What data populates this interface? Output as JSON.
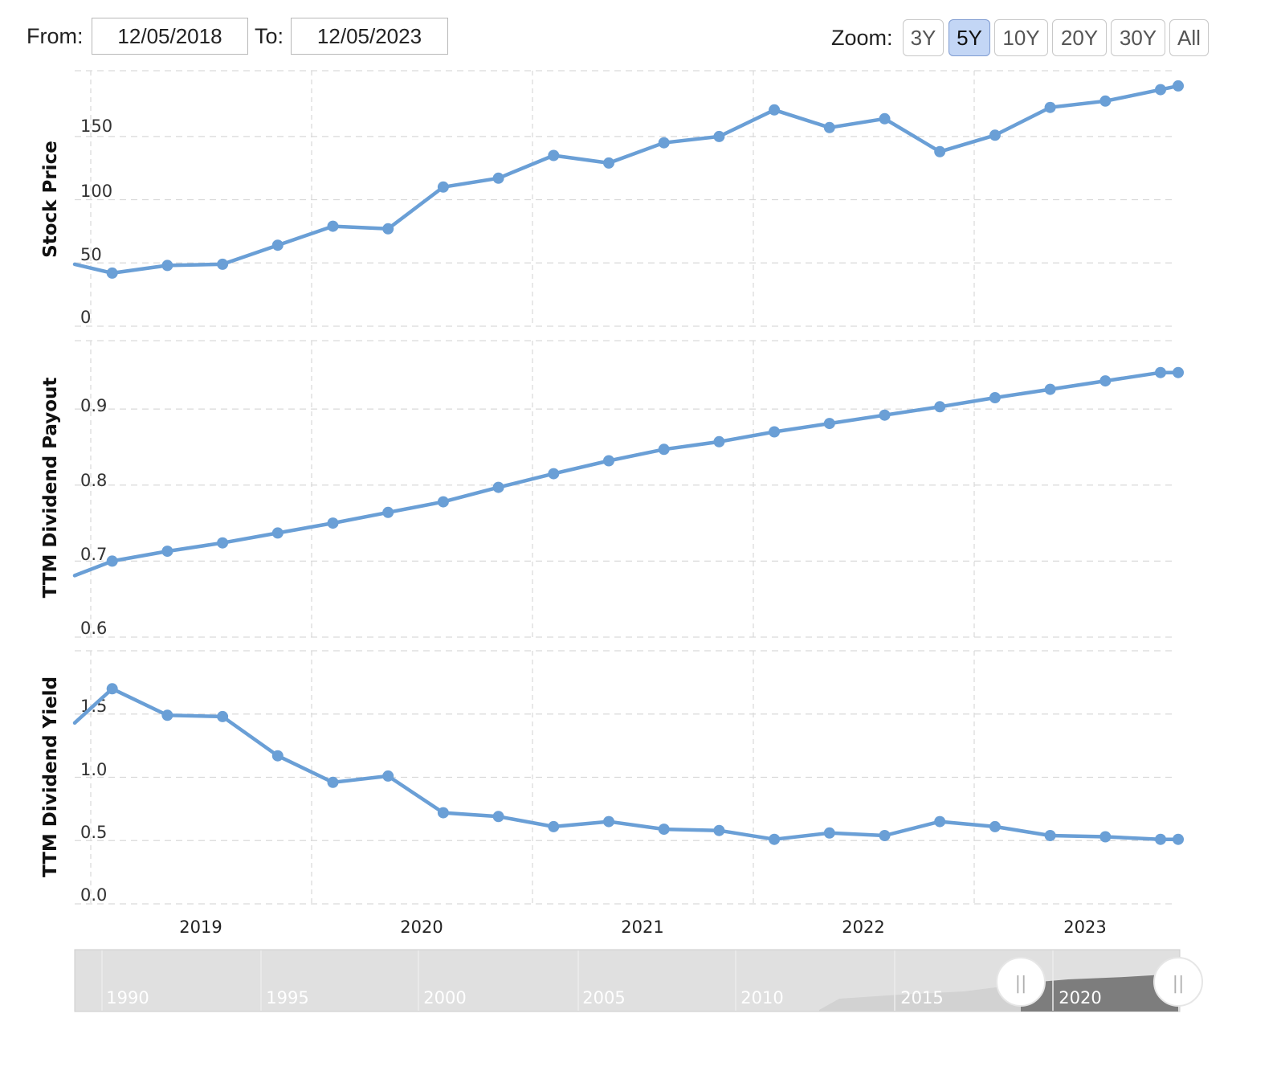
{
  "toolbar": {
    "from_label": "From:",
    "from_value": "12/05/2018",
    "to_label": "To:",
    "to_value": "12/05/2023",
    "zoom_label": "Zoom:",
    "zoom_options": [
      "3Y",
      "5Y",
      "10Y",
      "20Y",
      "30Y",
      "All"
    ],
    "zoom_active": "5Y"
  },
  "navigator": {
    "year_labels": [
      "1990",
      "1995",
      "2000",
      "2005",
      "2010",
      "2015",
      "2020"
    ],
    "handle_glyph": "||"
  },
  "colors": {
    "series": "#6a9fd6",
    "grid": "#d9d9d9",
    "navigator_bg": "#e0e0e0",
    "navigator_selected": "#8a8a8a"
  },
  "chart_data": {
    "type": "line",
    "x_axis": {
      "labels": [
        "2019",
        "2020",
        "2021",
        "2022",
        "2023"
      ],
      "range": [
        2018.58,
        2023.58
      ]
    },
    "x": [
      2018.58,
      2018.75,
      2019.0,
      2019.25,
      2019.5,
      2019.75,
      2020.0,
      2020.25,
      2020.5,
      2020.75,
      2021.0,
      2021.25,
      2021.5,
      2021.75,
      2022.0,
      2022.25,
      2022.5,
      2022.75,
      2023.0,
      2023.25,
      2023.5,
      2023.58
    ],
    "panels": [
      {
        "name": "Stock Price",
        "ylabel": "Stock Price",
        "yticks": [
          "0",
          "50",
          "100",
          "150"
        ],
        "tick_values": [
          0,
          50,
          100,
          150
        ],
        "ylim": [
          0,
          202
        ],
        "values": [
          null,
          42,
          48,
          49,
          64,
          79,
          77,
          110,
          117,
          135,
          129,
          145,
          150,
          171,
          157,
          164,
          138,
          151,
          173,
          178,
          187,
          190
        ],
        "entry_value": 49
      },
      {
        "name": "TTM Dividend Payout",
        "ylabel": "TTM Dividend Payout",
        "yticks": [
          "0.6",
          "0.7",
          "0.8",
          "0.9"
        ],
        "tick_values": [
          0.6,
          0.7,
          0.8,
          0.9
        ],
        "ylim": [
          0.6,
          0.99
        ],
        "values": [
          null,
          0.7,
          0.713,
          0.724,
          0.737,
          0.75,
          0.764,
          0.778,
          0.797,
          0.815,
          0.832,
          0.847,
          0.857,
          0.87,
          0.881,
          0.892,
          0.903,
          0.915,
          0.926,
          0.937,
          0.948,
          0.948
        ],
        "entry_value": 0.681
      },
      {
        "name": "TTM Dividend Yield",
        "ylabel": "TTM Dividend Yield",
        "yticks": [
          "0.0",
          "0.5",
          "1.0",
          "1.5"
        ],
        "tick_values": [
          0,
          0.5,
          1.0,
          1.5
        ],
        "ylim": [
          0,
          2.0
        ],
        "values": [
          null,
          1.7,
          1.49,
          1.48,
          1.17,
          0.96,
          1.01,
          0.72,
          0.69,
          0.61,
          0.65,
          0.59,
          0.58,
          0.51,
          0.56,
          0.54,
          0.65,
          0.61,
          0.54,
          0.53,
          0.51,
          0.51
        ],
        "entry_value": 1.43
      }
    ]
  }
}
